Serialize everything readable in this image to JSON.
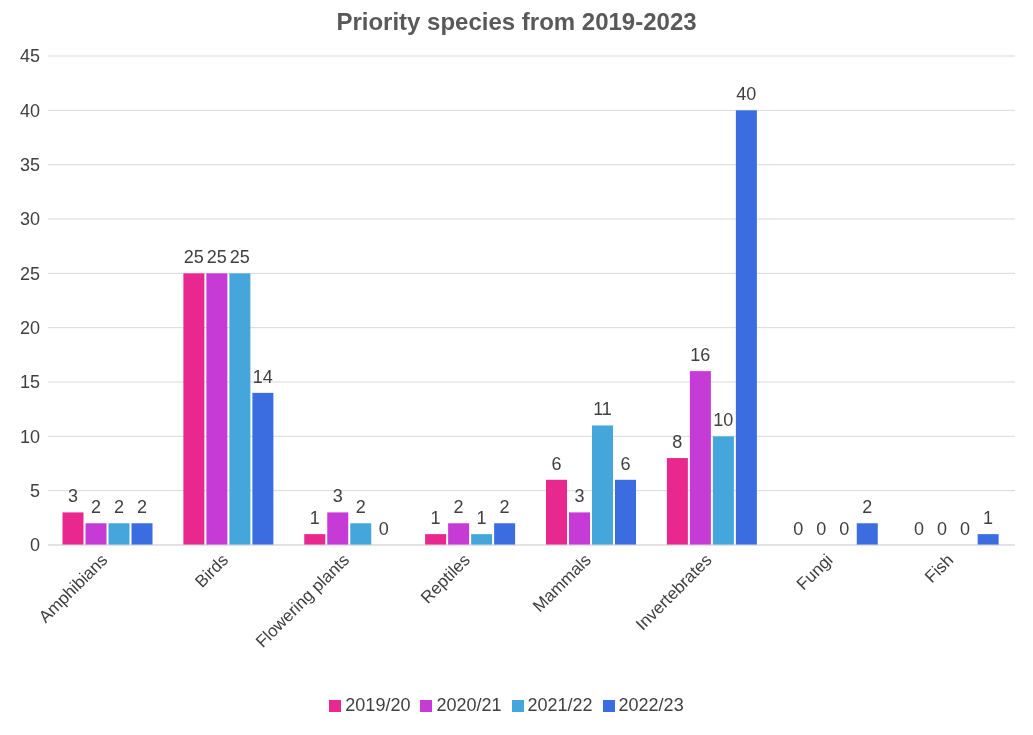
{
  "chart_data": {
    "type": "bar",
    "title": "Priority species from 2019-2023",
    "categories": [
      "Amphibians",
      "Birds",
      "Flowering plants",
      "Reptiles",
      "Mammals",
      "Invertebrates",
      "Fungi",
      "Fish"
    ],
    "series": [
      {
        "name": "2019/20",
        "color": "#e8288f",
        "values": [
          3,
          25,
          1,
          1,
          6,
          8,
          0,
          0
        ]
      },
      {
        "name": "2020/21",
        "color": "#c63ad6",
        "values": [
          2,
          25,
          3,
          2,
          3,
          16,
          0,
          0
        ]
      },
      {
        "name": "2021/22",
        "color": "#45a6dc",
        "values": [
          2,
          25,
          2,
          1,
          11,
          10,
          0,
          0
        ]
      },
      {
        "name": "2022/23",
        "color": "#3b6ce0",
        "values": [
          2,
          14,
          0,
          2,
          6,
          40,
          2,
          1
        ]
      }
    ],
    "ylim": [
      0,
      45
    ],
    "yticks": [
      0,
      5,
      10,
      15,
      20,
      25,
      30,
      35,
      40,
      45
    ],
    "grid": "y",
    "legend": "bottom",
    "data_labels": true
  }
}
